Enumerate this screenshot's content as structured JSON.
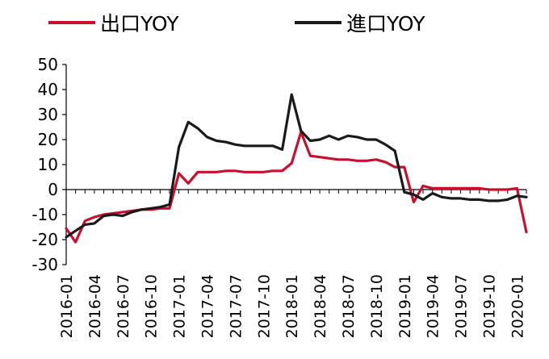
{
  "chart_data": {
    "type": "line",
    "title": "",
    "xlabel": "",
    "ylabel": "",
    "ylim": [
      -30,
      50
    ],
    "yticks": [
      50,
      40,
      30,
      20,
      10,
      0,
      -10,
      -20,
      -30
    ],
    "grid": false,
    "legend_position": "top",
    "x": [
      "2016-01",
      "2016-02",
      "2016-03",
      "2016-04",
      "2016-05",
      "2016-06",
      "2016-07",
      "2016-08",
      "2016-09",
      "2016-10",
      "2016-11",
      "2016-12",
      "2017-01",
      "2017-02",
      "2017-03",
      "2017-04",
      "2017-05",
      "2017-06",
      "2017-07",
      "2017-08",
      "2017-09",
      "2017-10",
      "2017-11",
      "2017-12",
      "2018-01",
      "2018-02",
      "2018-03",
      "2018-04",
      "2018-05",
      "2018-06",
      "2018-07",
      "2018-08",
      "2018-09",
      "2018-10",
      "2018-11",
      "2018-12",
      "2019-01",
      "2019-02",
      "2019-03",
      "2019-04",
      "2019-05",
      "2019-06",
      "2019-07",
      "2019-08",
      "2019-09",
      "2019-10",
      "2019-11",
      "2019-12",
      "2020-01",
      "2020-02"
    ],
    "x_tick_labels": [
      "2016-01",
      "2016-04",
      "2016-07",
      "2016-10",
      "2017-01",
      "2017-04",
      "2017-07",
      "2017-10",
      "2018-01",
      "2018-04",
      "2018-07",
      "2018-10",
      "2019-01",
      "2019-04",
      "2019-07",
      "2019-10",
      "2020-01"
    ],
    "series": [
      {
        "name": "出口YOY",
        "color": "#c8102e",
        "values": [
          -15.5,
          -21,
          -12.5,
          -11,
          -10,
          -9.5,
          -9,
          -8.5,
          -8,
          -8,
          -7.5,
          -7.5,
          6.5,
          2.5,
          7,
          7,
          7,
          7.5,
          7.5,
          7,
          7,
          7,
          7.5,
          7.5,
          10.5,
          23,
          13.5,
          13,
          12.5,
          12,
          12,
          11.5,
          11.5,
          12,
          11,
          9,
          9,
          -5,
          1.5,
          0.5,
          0.5,
          0.5,
          0.5,
          0.5,
          0.5,
          0,
          0,
          0,
          0.5,
          -17
        ]
      },
      {
        "name": "進口YOY",
        "color": "#1a1a1a",
        "values": [
          -19,
          -16.5,
          -14,
          -13.5,
          -10.5,
          -10,
          -10.5,
          -9,
          -8,
          -7.5,
          -7,
          -6,
          17,
          27,
          24.5,
          21,
          19.5,
          19,
          18,
          17.5,
          17.5,
          17.5,
          17.5,
          16,
          38,
          23.5,
          19.5,
          20,
          21.5,
          20,
          21.5,
          21,
          20,
          20,
          18,
          15.5,
          -1,
          -2,
          -4,
          -1.5,
          -3,
          -3.5,
          -3.5,
          -4,
          -4,
          -4.5,
          -4.5,
          -4,
          -2.5,
          -3
        ]
      }
    ]
  }
}
